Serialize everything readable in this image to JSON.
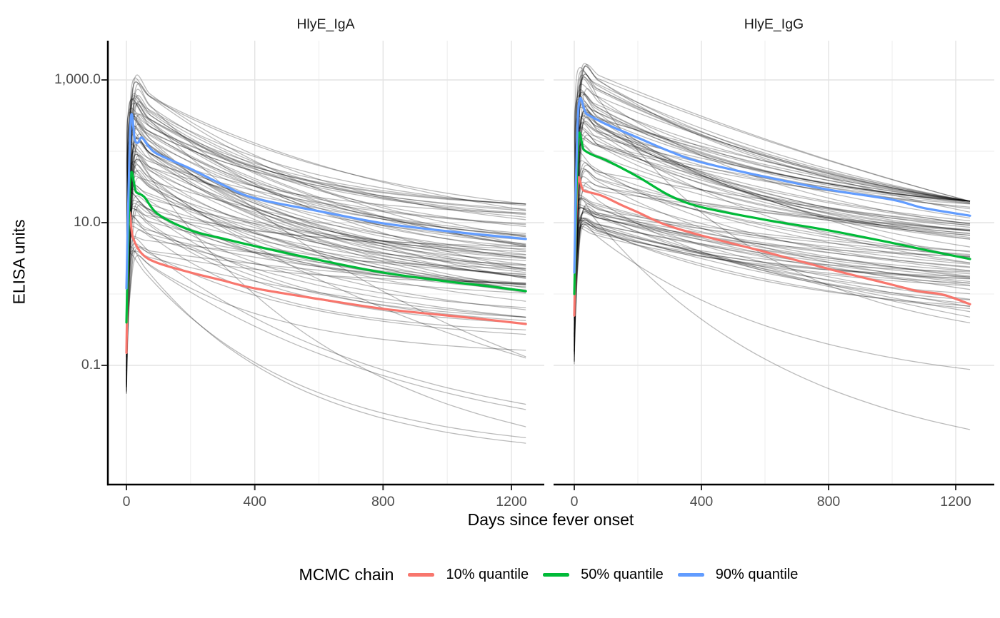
{
  "figure": {
    "facet_titles": [
      "HlyE_IgA",
      "HlyE_IgG"
    ],
    "x_axis_title": "Days since fever onset",
    "y_axis_title": "ELISA units",
    "y_tick_labels": [
      "1,000.0",
      "10.0",
      "0.1"
    ],
    "x_tick_labels": [
      "0",
      "400",
      "800",
      "1200"
    ]
  },
  "legend": {
    "title": "MCMC chain",
    "entries": [
      {
        "label": "10% quantile",
        "color": "#F8766D"
      },
      {
        "label": "50% quantile",
        "color": "#00BA38"
      },
      {
        "label": "90% quantile",
        "color": "#619CFF"
      }
    ]
  },
  "colors": {
    "grid_major": "#E3E3E3",
    "grid_minor": "#EDEDED",
    "axis_line": "#000000",
    "tick_mark": "#333333",
    "draw_line": "#000000"
  },
  "chart_data": {
    "type": "line",
    "title": "",
    "xlabel": "Days since fever onset",
    "ylabel": "ELISA units",
    "y_scale": "log10",
    "grid": true,
    "legend_position": "bottom",
    "x_ticks": [
      0,
      400,
      800,
      1200
    ],
    "x_minor_ticks": [
      200,
      600,
      1000
    ],
    "y_ticks": [
      1000,
      10,
      0.1
    ],
    "y_minor_ticks": [
      100,
      1
    ],
    "x_range": [
      0,
      1245
    ],
    "y_range_shown": [
      0.0022,
      3500
    ],
    "facets": [
      {
        "title": "HlyE_IgA",
        "quantile_series": [
          {
            "name": "10% quantile",
            "color": "#F8766D",
            "points": [
              [
                0,
                0.15
              ],
              [
                8,
                11.5
              ],
              [
                20,
                6.2
              ],
              [
                50,
                3.6
              ],
              [
                100,
                2.7
              ],
              [
                200,
                2.0
              ],
              [
                300,
                1.55
              ],
              [
                400,
                1.2
              ],
              [
                600,
                0.85
              ],
              [
                800,
                0.62
              ],
              [
                1000,
                0.5
              ],
              [
                1120,
                0.44
              ],
              [
                1245,
                0.38
              ]
            ]
          },
          {
            "name": "50% quantile",
            "color": "#00BA38",
            "points": [
              [
                0,
                0.4
              ],
              [
                12,
                40
              ],
              [
                30,
                27
              ],
              [
                55,
                23
              ],
              [
                100,
                13
              ],
              [
                200,
                7.8
              ],
              [
                300,
                6.0
              ],
              [
                400,
                4.7
              ],
              [
                600,
                3.0
              ],
              [
                800,
                2.0
              ],
              [
                1000,
                1.5
              ],
              [
                1120,
                1.3
              ],
              [
                1245,
                1.1
              ]
            ]
          },
          {
            "name": "90% quantile",
            "color": "#619CFF",
            "points": [
              [
                0,
                1.2
              ],
              [
                13,
                255
              ],
              [
                26,
                145
              ],
              [
                36,
                132
              ],
              [
                48,
                156
              ],
              [
                70,
                116
              ],
              [
                100,
                90
              ],
              [
                200,
                57
              ],
              [
                300,
                34
              ],
              [
                400,
                22
              ],
              [
                600,
                14.5
              ],
              [
                800,
                9.8
              ],
              [
                1000,
                7.6
              ],
              [
                1120,
                6.7
              ],
              [
                1245,
                5.9
              ]
            ]
          }
        ],
        "posterior_draws": {
          "count": 88,
          "seed": 101,
          "opacity": 0.27,
          "peak_day_range": [
            5,
            33
          ],
          "peak_log10_range": [
            0.5,
            3.0
          ],
          "start_log10_range": [
            -1.4,
            0.0
          ],
          "end_log10": {
            "intercept": -0.62,
            "slope_vs_peak": 0.6,
            "spread": 0.55,
            "min": -2.55,
            "max": 1.26
          },
          "steep_dropout_fraction": 0.07,
          "curvature_range": [
            0.9,
            3.2
          ]
        }
      },
      {
        "title": "HlyE_IgG",
        "quantile_series": [
          {
            "name": "10% quantile",
            "color": "#F8766D",
            "points": [
              [
                0,
                0.5
              ],
              [
                10,
                33
              ],
              [
                30,
                28
              ],
              [
                85,
                24
              ],
              [
                150,
                17.5
              ],
              [
                200,
                14
              ],
              [
                283,
                9.5
              ],
              [
                400,
                6.6
              ],
              [
                600,
                3.9
              ],
              [
                800,
                2.25
              ],
              [
                1000,
                1.35
              ],
              [
                1080,
                1.1
              ],
              [
                1160,
                0.98
              ],
              [
                1245,
                0.72
              ]
            ]
          },
          {
            "name": "50% quantile",
            "color": "#00BA38",
            "points": [
              [
                0,
                1.0
              ],
              [
                12,
                135
              ],
              [
                30,
                105
              ],
              [
                60,
                88
              ],
              [
                100,
                75
              ],
              [
                200,
                44
              ],
              [
                300,
                24
              ],
              [
                400,
                16.5
              ],
              [
                600,
                11
              ],
              [
                800,
                7.8
              ],
              [
                1000,
                5.2
              ],
              [
                1120,
                4.0
              ],
              [
                1245,
                3.1
              ]
            ]
          },
          {
            "name": "90% quantile",
            "color": "#619CFF",
            "points": [
              [
                0,
                2.0
              ],
              [
                13,
                390
              ],
              [
                40,
                330
              ],
              [
                100,
                240
              ],
              [
                200,
                155
              ],
              [
                300,
                100
              ],
              [
                400,
                70
              ],
              [
                600,
                44
              ],
              [
                800,
                29
              ],
              [
                1000,
                21
              ],
              [
                1100,
                16
              ],
              [
                1245,
                12.5
              ]
            ]
          }
        ],
        "posterior_draws": {
          "count": 88,
          "seed": 202,
          "opacity": 0.27,
          "peak_day_range": [
            5,
            33
          ],
          "peak_log10_range": [
            0.9,
            3.17
          ],
          "start_log10_range": [
            -1.0,
            0.5
          ],
          "end_log10": {
            "intercept": -0.42,
            "slope_vs_peak": 0.56,
            "spread": 0.5,
            "min": -1.9,
            "max": 1.3
          },
          "steep_dropout_fraction": 0.05,
          "curvature_range": [
            0.4,
            2.4
          ]
        }
      }
    ]
  }
}
